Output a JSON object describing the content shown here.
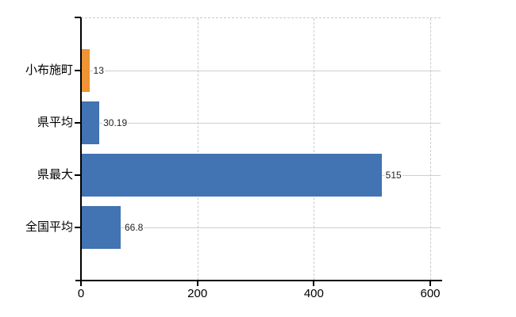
{
  "chart_data": {
    "type": "bar",
    "orientation": "horizontal",
    "title": "",
    "categories": [
      "小布施町",
      "県平均",
      "県最大",
      "全国平均"
    ],
    "values": [
      13,
      30.19,
      515,
      66.8
    ],
    "value_labels": [
      "13",
      "30.19",
      "515",
      "66.8"
    ],
    "bar_colors": [
      "#ee9434",
      "#4273b2",
      "#4273b2",
      "#4273b2"
    ],
    "highlight_color": "#ee9434",
    "series_color": "#4273b2",
    "xlim": [
      0,
      600
    ],
    "x_ticks": [
      0,
      200,
      400,
      600
    ],
    "x_tick_labels": [
      "0",
      "200",
      "400",
      "600"
    ],
    "grid": true,
    "gridline_color_horizontal": "#c9d2c9",
    "gridline_color_vertical_dashed": "#c9c9c9",
    "axis_color": "#000000",
    "legend": false
  }
}
